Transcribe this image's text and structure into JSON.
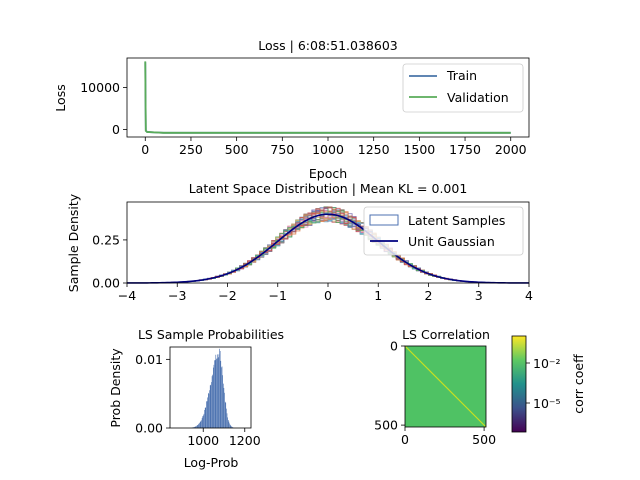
{
  "colors": {
    "train": "#4a74a8",
    "validation": "#5aac5a",
    "gaussian": "#00007f",
    "hist": "#4c72b0",
    "corr_bg": "#4fc264",
    "corr_diag": "#c8e020"
  },
  "chart_data": [
    {
      "type": "line",
      "title": "Loss | 6:08:51.038603",
      "xlabel": "Epoch",
      "ylabel": "Loss",
      "xlim": [
        -100,
        2100
      ],
      "ylim": [
        -1800,
        17000
      ],
      "xticks": [
        0,
        250,
        500,
        750,
        1000,
        1250,
        1500,
        1750,
        2000
      ],
      "yticks": [
        0,
        10000
      ],
      "legend_position": "upper-right",
      "series": [
        {
          "name": "Train",
          "x": [
            0,
            1,
            3,
            10,
            50,
            100,
            2000
          ],
          "y": [
            16000,
            9000,
            -300,
            -600,
            -700,
            -800,
            -800
          ]
        },
        {
          "name": "Validation",
          "x": [
            0,
            1,
            3,
            10,
            50,
            100,
            2000
          ],
          "y": [
            16200,
            9000,
            -300,
            -600,
            -700,
            -800,
            -800
          ]
        }
      ]
    },
    {
      "type": "histogram",
      "title": "Latent Space Distribution | Mean KL = 0.001",
      "xlabel": "",
      "ylabel": "Sample Density",
      "xlim": [
        -4,
        4
      ],
      "ylim": [
        0,
        0.47
      ],
      "xticks": [
        -4,
        -3,
        -2,
        -1,
        0,
        1,
        2,
        3,
        4
      ],
      "yticks": [
        0,
        0.25
      ],
      "legend_position": "upper-right",
      "series": [
        {
          "name": "Latent Samples",
          "kind": "histogram-overlay"
        },
        {
          "name": "Unit Gaussian",
          "kind": "line",
          "mean": 0,
          "std": 1
        }
      ]
    },
    {
      "type": "histogram",
      "title": "LS Sample Probabilities",
      "xlabel": "Log-Prob",
      "ylabel": "Prob Density",
      "xlim": [
        840,
        1230
      ],
      "ylim": [
        0,
        0.0118
      ],
      "xticks": [
        1000,
        1200
      ],
      "yticks": [
        0,
        0.01
      ],
      "distribution": {
        "peak_x": 1075,
        "peak_density": 0.0108
      }
    },
    {
      "type": "heatmap",
      "title": "LS Correlation",
      "xlabel": "",
      "ylabel": "",
      "size": 512,
      "xticks": [
        0,
        500
      ],
      "yticks": [
        0,
        500
      ],
      "colorbar": {
        "label": "corr coeff",
        "scale": "log",
        "ticks": [
          "10⁻²",
          "10⁻⁵"
        ]
      }
    }
  ],
  "tick_labels": {
    "loss_x": [
      "0",
      "250",
      "500",
      "750",
      "1000",
      "1250",
      "1500",
      "1750",
      "2000"
    ],
    "loss_y": [
      "10000",
      "0"
    ],
    "latent_x": [
      "−4",
      "−3",
      "−2",
      "−1",
      "0",
      "1",
      "2",
      "3",
      "4"
    ],
    "latent_y": [
      "0.25",
      "0.00"
    ],
    "prob_x": [
      "1000",
      "1200"
    ],
    "prob_y": [
      "0.01",
      "0.00"
    ],
    "corr_x": [
      "0",
      "500"
    ],
    "corr_y": [
      "0",
      "500"
    ]
  }
}
